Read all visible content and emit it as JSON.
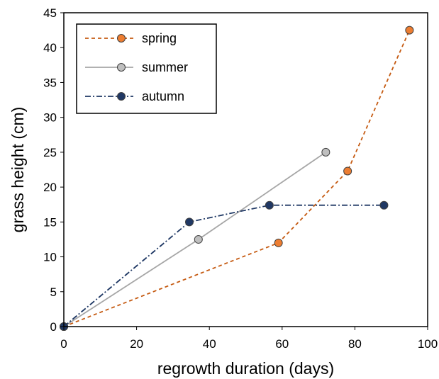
{
  "chart_data": {
    "type": "line",
    "xlabel": "regrowth duration (days)",
    "ylabel": "grass height (cm)",
    "xlim": [
      0,
      100
    ],
    "ylim": [
      0,
      45
    ],
    "xticks": [
      0,
      20,
      40,
      60,
      80,
      100
    ],
    "yticks": [
      0,
      5,
      10,
      15,
      20,
      25,
      30,
      35,
      40,
      45
    ],
    "grid": false,
    "legend_position": "top-left",
    "series": [
      {
        "name": "spring",
        "color": "#C55A11",
        "marker_fill": "#ED7D31",
        "line_style": "dashed",
        "points": [
          [
            0,
            0
          ],
          [
            59,
            12
          ],
          [
            78,
            22.3
          ],
          [
            95,
            42.5
          ]
        ]
      },
      {
        "name": "summer",
        "color": "#A6A6A6",
        "marker_fill": "#BFBFBF",
        "line_style": "solid",
        "points": [
          [
            0,
            0
          ],
          [
            37,
            12.5
          ],
          [
            72,
            25
          ]
        ]
      },
      {
        "name": "autumn",
        "color": "#1F3864",
        "marker_fill": "#203864",
        "line_style": "dash-dot",
        "points": [
          [
            0,
            0
          ],
          [
            34.5,
            15
          ],
          [
            56.5,
            17.4
          ],
          [
            88,
            17.4
          ]
        ]
      }
    ]
  }
}
